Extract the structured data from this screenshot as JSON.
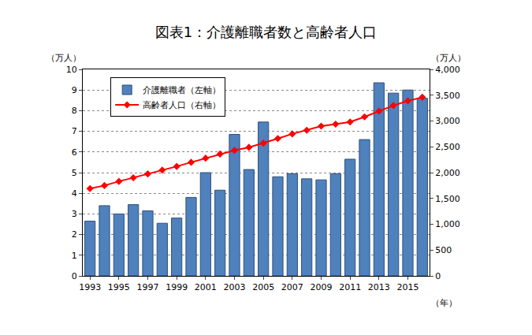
{
  "chart_data": {
    "type": "bar",
    "title": "図表1：介護離職者数と高齢者人口",
    "ylabel": "（万人）",
    "y2label": "（万人）",
    "xlabel": "（年）",
    "categories": [
      "1993",
      null,
      "1995",
      null,
      "1997",
      null,
      "1999",
      null,
      "2001",
      null,
      "2003",
      null,
      "2005",
      null,
      "2007",
      null,
      "2009",
      null,
      "2011",
      null,
      "2013",
      null,
      "2015",
      null
    ],
    "series": [
      {
        "name": "介護離職者（左軸）",
        "type": "bar",
        "color": "#4f81bd",
        "values": [
          2.65,
          3.4,
          3.0,
          3.45,
          3.15,
          2.55,
          2.8,
          3.8,
          5.0,
          4.15,
          6.85,
          5.15,
          7.45,
          4.8,
          4.95,
          4.7,
          4.65,
          4.95,
          5.65,
          6.6,
          9.35,
          8.85,
          9.0,
          8.6
        ]
      },
      {
        "name": "高齢者人口（右軸）",
        "type": "line",
        "color": "#ff0000",
        "marker": "diamond",
        "axis": "y2",
        "values": [
          1690,
          1750,
          1830,
          1900,
          1975,
          2050,
          2120,
          2200,
          2280,
          2360,
          2430,
          2490,
          2570,
          2660,
          2750,
          2820,
          2900,
          2940,
          2980,
          3080,
          3190,
          3300,
          3390,
          3460
        ]
      }
    ],
    "ylim": [
      0,
      10
    ],
    "yticks": [
      0,
      1,
      2,
      3,
      4,
      5,
      6,
      7,
      8,
      9,
      10
    ],
    "y2lim": [
      0,
      4000
    ],
    "y2ticks": [
      0,
      500,
      {
        "value": 1000,
        "label": "1,000"
      },
      {
        "value": 1500,
        "label": "1,500"
      },
      {
        "value": 2000,
        "label": "2,000"
      },
      {
        "value": 2500,
        "label": "2,500"
      },
      {
        "value": 3000,
        "label": "3,000"
      },
      {
        "value": 3500,
        "label": "3,500"
      },
      {
        "value": 4000,
        "label": "4,000"
      }
    ],
    "grid": true,
    "legend": "top left"
  }
}
